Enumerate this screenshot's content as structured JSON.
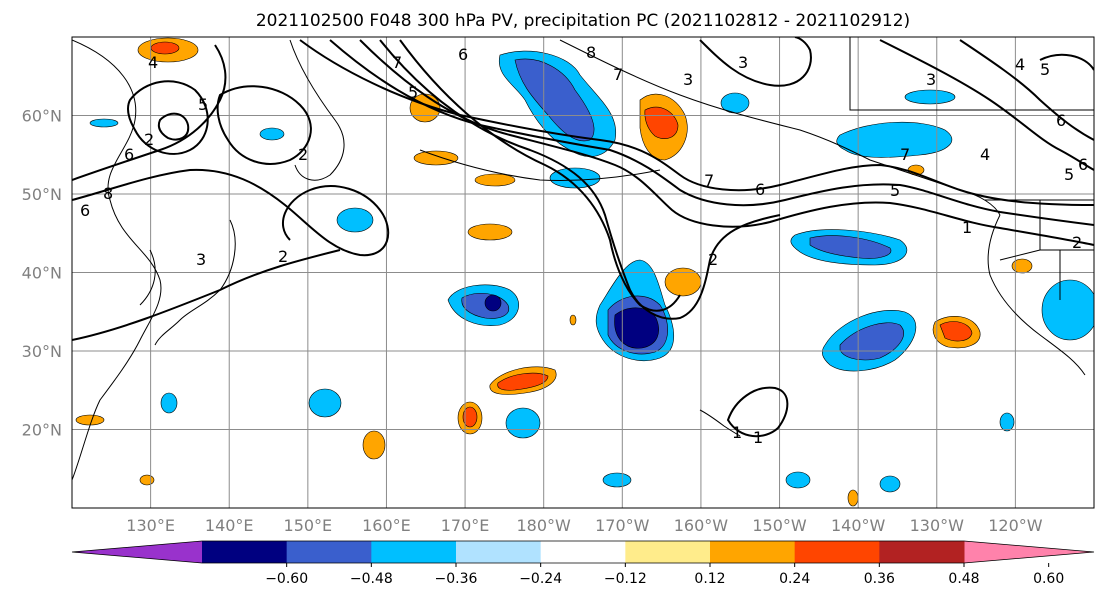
{
  "title": "2021102500 F048 300 hPa PV, precipitation PC (2021102812 - 2021102912)",
  "map": {
    "lat_labels": [
      "60°N",
      "50°N",
      "40°N",
      "30°N",
      "20°N"
    ],
    "lat_values": [
      60,
      50,
      40,
      30,
      20
    ],
    "lon_labels": [
      "130°E",
      "140°E",
      "150°E",
      "160°E",
      "170°E",
      "180°W",
      "170°W",
      "160°W",
      "150°W",
      "140°W",
      "130°W",
      "120°W"
    ],
    "lon_values": [
      130,
      140,
      150,
      160,
      170,
      180,
      190,
      200,
      210,
      220,
      230,
      240
    ],
    "lon_range": [
      120,
      250
    ],
    "lat_range": [
      10,
      70
    ]
  },
  "colorbar": {
    "labels": [
      "−0.60",
      "−0.48",
      "−0.36",
      "−0.24",
      "−0.12",
      "0.12",
      "0.24",
      "0.36",
      "0.48",
      "0.60"
    ],
    "colors": [
      "#9932cc",
      "#000080",
      "#3a5fcd",
      "#00bfff",
      "#b0e2ff",
      "#ffffff",
      "#ffec8b",
      "#ffa500",
      "#ff4500",
      "#b22222",
      "#ff82ab"
    ]
  },
  "contour_labels": [
    "4",
    "5",
    "6",
    "8",
    "6",
    "7",
    "6",
    "5",
    "7",
    "3",
    "8",
    "2",
    "7",
    "6",
    "3",
    "5",
    "4",
    "6",
    "2",
    "2",
    "1",
    "1",
    "2",
    "3",
    "7",
    "5",
    "3",
    "4",
    "5",
    "6",
    "2",
    "1"
  ]
}
